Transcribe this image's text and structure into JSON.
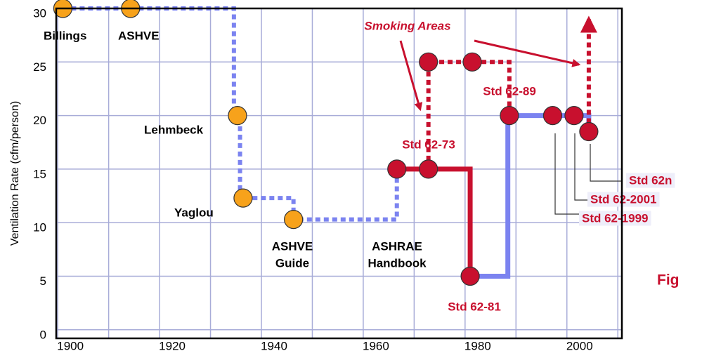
{
  "chart_data": {
    "type": "step",
    "ylabel": "Ventilation Rate (cfm/person)",
    "xlim": [
      1899.7,
      2010.8
    ],
    "ylim": [
      -0.8,
      30
    ],
    "xticks": [
      1900,
      1920,
      1940,
      1960,
      1980,
      2000
    ],
    "yticks": [
      0,
      5,
      10,
      15,
      20,
      25,
      30
    ],
    "xgrid": [
      1900,
      1910,
      1920,
      1930,
      1940,
      1950,
      1960,
      1970,
      1980,
      1990,
      2000,
      2010
    ],
    "grid": true,
    "grid_color": "#a8acd8",
    "series": [
      {
        "color": "#7b83f0",
        "dashed": true,
        "x": [
          1901,
          1934.6,
          1934.6,
          1935.8,
          1935.8,
          1946.3,
          1946.3,
          1966.6,
          1966.6
        ],
        "y": [
          30,
          30,
          20,
          20,
          12.3,
          12.3,
          10.3,
          10.3,
          15
        ]
      },
      {
        "color": "#c8102e",
        "dashed": true,
        "x": [
          1972.8,
          1972.8,
          1988.7,
          1988.7
        ],
        "y": [
          15,
          25,
          25,
          20
        ]
      },
      {
        "color": "#c8102e",
        "dashed": false,
        "x": [
          1966.6,
          1981,
          1981
        ],
        "y": [
          15,
          15,
          5
        ]
      },
      {
        "color": "#7b83f0",
        "dashed": false,
        "x": [
          1981,
          1988.4,
          1988.4,
          2004.3,
          2004.3
        ],
        "y": [
          5,
          5,
          20,
          20,
          18.5
        ]
      },
      {
        "color": "#c8102e",
        "dashed": true,
        "x": [
          2004.3,
          2004.3
        ],
        "y": [
          18.5,
          29
        ]
      }
    ],
    "points": {
      "orange": "#f7a21b",
      "red": "#c8102e",
      "x": [
        1901,
        1914.3,
        1935.3,
        1936.4,
        1946.3,
        1966.6,
        1972.8,
        1972.8,
        1981.4,
        1981,
        1988.7,
        1997.2,
        2001.4,
        2004.3
      ],
      "y": [
        30,
        30,
        20,
        12.3,
        10.3,
        15,
        15,
        25,
        25,
        5,
        20,
        20,
        20,
        18.5
      ],
      "kind": [
        "orange",
        "orange",
        "orange",
        "orange",
        "orange",
        "red",
        "red",
        "red",
        "red",
        "red",
        "red",
        "red",
        "red",
        "red"
      ]
    },
    "annotations": [
      [
        "Billings"
      ],
      [
        "ASHVE"
      ],
      [
        "Lehmbeck"
      ],
      [
        "Yaglou"
      ],
      [
        "ASHVE",
        "Guide"
      ],
      [
        "ASHRAE",
        "Handbook"
      ],
      [
        "Smoking Areas"
      ],
      [
        "Std 62-73"
      ],
      [
        "Std 62-89"
      ],
      [
        "Std 62-81"
      ],
      [
        "Std 62n"
      ],
      [
        "Std 62-2001"
      ],
      [
        "Std 62-1999"
      ],
      [
        "Fig"
      ]
    ]
  }
}
